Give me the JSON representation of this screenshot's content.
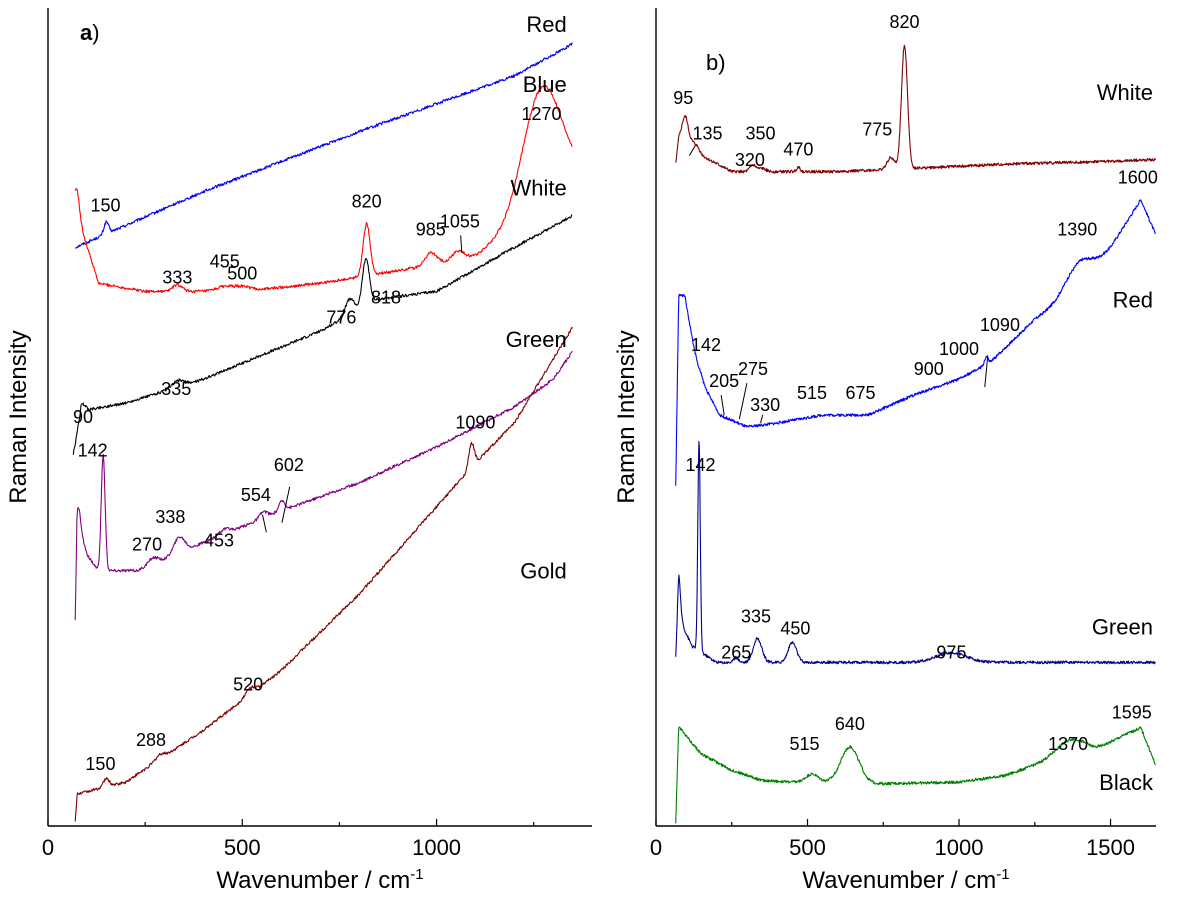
{
  "chart_data": [
    {
      "type": "line",
      "panel_label": {
        "bold": "a",
        "rest": ")"
      },
      "xlabel": "Wavenumber  /  cm",
      "xlabel_sup": "-1",
      "ylabel": "Raman  Intensity",
      "xlim": [
        0,
        1400
      ],
      "x_ticks": [
        "0",
        "500",
        "1000"
      ],
      "x_tick_values": [
        0,
        500,
        1000
      ],
      "y_ticks_shown": false,
      "series": [
        {
          "name": "Red",
          "color": "#0000ff",
          "x_range": [
            70,
            1350
          ],
          "baseline": [
            [
              70,
              0.72
            ],
            [
              400,
              0.79
            ],
            [
              800,
              0.865
            ],
            [
              1200,
              0.935
            ],
            [
              1350,
              0.975
            ]
          ],
          "peaks": [
            [
              150,
              0.015,
              6
            ]
          ]
        },
        {
          "name": "Blue",
          "color": "#ff0000",
          "x_range": [
            70,
            1350
          ],
          "baseline": [
            [
              70,
              0.77
            ],
            [
              130,
              0.675
            ],
            [
              250,
              0.665
            ],
            [
              500,
              0.665
            ],
            [
              700,
              0.675
            ],
            [
              950,
              0.695
            ],
            [
              1100,
              0.71
            ],
            [
              1200,
              0.74
            ],
            [
              1350,
              0.805
            ]
          ],
          "peaks": [
            [
              75,
              0.03,
              6
            ],
            [
              333,
              0.008,
              12
            ],
            [
              455,
              0.006,
              20
            ],
            [
              500,
              0.006,
              20
            ],
            [
              820,
              0.065,
              9
            ],
            [
              985,
              0.015,
              14
            ],
            [
              1055,
              0.01,
              14
            ],
            [
              1270,
              0.15,
              50
            ]
          ]
        },
        {
          "name": "White",
          "color": "#000000",
          "x_range": [
            65,
            1350
          ],
          "baseline": [
            [
              65,
              0.46
            ],
            [
              85,
              0.515
            ],
            [
              200,
              0.525
            ],
            [
              400,
              0.555
            ],
            [
              700,
              0.615
            ],
            [
              850,
              0.655
            ],
            [
              1000,
              0.665
            ],
            [
              1200,
              0.72
            ],
            [
              1350,
              0.76
            ]
          ],
          "peaks": [
            [
              90,
              0.008,
              7
            ],
            [
              335,
              0.008,
              15
            ],
            [
              776,
              0.02,
              12
            ],
            [
              818,
              0.06,
              9
            ]
          ]
        },
        {
          "name": "Green",
          "color": "#800080",
          "x_range": [
            70,
            1350
          ],
          "baseline": [
            [
              70,
              0.25
            ],
            [
              75,
              0.38
            ],
            [
              100,
              0.335
            ],
            [
              130,
              0.315
            ],
            [
              230,
              0.315
            ],
            [
              400,
              0.35
            ],
            [
              600,
              0.39
            ],
            [
              800,
              0.425
            ],
            [
              1000,
              0.47
            ],
            [
              1200,
              0.52
            ],
            [
              1300,
              0.555
            ],
            [
              1350,
              0.59
            ]
          ],
          "peaks": [
            [
              80,
              0.02,
              5
            ],
            [
              142,
              0.145,
              5
            ],
            [
              270,
              0.008,
              12
            ],
            [
              338,
              0.02,
              14
            ],
            [
              453,
              0.006,
              15
            ],
            [
              554,
              0.008,
              10
            ],
            [
              602,
              0.012,
              8
            ]
          ]
        },
        {
          "name": "Gold",
          "color": "#800000",
          "x_range": [
            70,
            1350
          ],
          "baseline": [
            [
              70,
              0.0
            ],
            [
              75,
              0.035
            ],
            [
              200,
              0.05
            ],
            [
              400,
              0.115
            ],
            [
              600,
              0.19
            ],
            [
              800,
              0.285
            ],
            [
              1000,
              0.395
            ],
            [
              1100,
              0.45
            ],
            [
              1200,
              0.5
            ],
            [
              1350,
              0.62
            ]
          ],
          "peaks": [
            [
              150,
              0.01,
              8
            ],
            [
              288,
              0.006,
              12
            ],
            [
              520,
              0.008,
              12
            ],
            [
              1090,
              0.03,
              7
            ]
          ]
        }
      ],
      "series_labels": [
        {
          "text": "Red",
          "x": 1335,
          "y": 0.99
        },
        {
          "text": "Blue",
          "x": 1335,
          "y": 0.915
        },
        {
          "text": "White",
          "x": 1335,
          "y": 0.785
        },
        {
          "text": "Green",
          "x": 1335,
          "y": 0.595
        },
        {
          "text": "Gold",
          "x": 1335,
          "y": 0.305
        }
      ],
      "peak_labels": [
        {
          "text": "1270",
          "x": 1270,
          "y": 0.88,
          "small": true
        },
        {
          "text": "150",
          "x": 148,
          "y": 0.765
        },
        {
          "text": "820",
          "x": 820,
          "y": 0.77
        },
        {
          "text": "985",
          "x": 985,
          "y": 0.735
        },
        {
          "text": "1055",
          "x": 1060,
          "y": 0.745,
          "small": true,
          "leader": [
            1062,
            0.735,
            1065,
            0.713
          ]
        },
        {
          "text": "455",
          "x": 455,
          "y": 0.695
        },
        {
          "text": "333",
          "x": 333,
          "y": 0.675
        },
        {
          "text": "500",
          "x": 500,
          "y": 0.68
        },
        {
          "text": "776",
          "x": 755,
          "y": 0.625
        },
        {
          "text": "818",
          "x": 870,
          "y": 0.65
        },
        {
          "text": "335",
          "x": 330,
          "y": 0.535
        },
        {
          "text": "90",
          "x": 90,
          "y": 0.5
        },
        {
          "text": "142",
          "x": 115,
          "y": 0.458
        },
        {
          "text": "338",
          "x": 315,
          "y": 0.375
        },
        {
          "text": "453",
          "x": 440,
          "y": 0.345
        },
        {
          "text": "554",
          "x": 535,
          "y": 0.402,
          "leader": [
            552,
            0.385,
            562,
            0.363
          ]
        },
        {
          "text": "602",
          "x": 620,
          "y": 0.44,
          "leader": [
            622,
            0.42,
            602,
            0.375
          ]
        },
        {
          "text": "270",
          "x": 255,
          "y": 0.34
        },
        {
          "text": "1090",
          "x": 1100,
          "y": 0.493
        },
        {
          "text": "520",
          "x": 515,
          "y": 0.165
        },
        {
          "text": "288",
          "x": 265,
          "y": 0.095
        },
        {
          "text": "150",
          "x": 135,
          "y": 0.065
        }
      ]
    },
    {
      "type": "line",
      "panel_label": {
        "bold": "",
        "rest": "b)"
      },
      "xlabel": "Wavenumber  /  cm",
      "xlabel_sup": "-1",
      "ylabel": "Raman Intensity",
      "xlim": [
        0,
        1650
      ],
      "x_ticks": [
        "0",
        "500",
        "1000",
        "1500"
      ],
      "x_tick_values": [
        0,
        500,
        1000,
        1500
      ],
      "y_ticks_shown": false,
      "series": [
        {
          "name": "White",
          "color": "#800000",
          "x_range": [
            65,
            1650
          ],
          "baseline": [
            [
              65,
              0.825
            ],
            [
              75,
              0.855
            ],
            [
              100,
              0.86
            ],
            [
              150,
              0.835
            ],
            [
              250,
              0.815
            ],
            [
              400,
              0.815
            ],
            [
              600,
              0.815
            ],
            [
              900,
              0.82
            ],
            [
              1200,
              0.825
            ],
            [
              1500,
              0.828
            ],
            [
              1650,
              0.83
            ]
          ],
          "peaks": [
            [
              95,
              0.025,
              10
            ],
            [
              135,
              0.005,
              12
            ],
            [
              320,
              0.008,
              10
            ],
            [
              350,
              0.004,
              12
            ],
            [
              470,
              0.006,
              6
            ],
            [
              775,
              0.015,
              12
            ],
            [
              820,
              0.155,
              10
            ]
          ]
        },
        {
          "name": "Red",
          "color": "#0000ff",
          "x_range": [
            65,
            1650
          ],
          "baseline": [
            [
              65,
              0.42
            ],
            [
              75,
              0.66
            ],
            [
              95,
              0.66
            ],
            [
              140,
              0.56
            ],
            [
              210,
              0.51
            ],
            [
              300,
              0.495
            ],
            [
              400,
              0.5
            ],
            [
              550,
              0.51
            ],
            [
              700,
              0.51
            ],
            [
              850,
              0.535
            ],
            [
              1000,
              0.555
            ],
            [
              1100,
              0.575
            ],
            [
              1250,
              0.63
            ],
            [
              1380,
              0.665
            ],
            [
              1500,
              0.72
            ],
            [
              1600,
              0.78
            ],
            [
              1650,
              0.735
            ]
          ],
          "peaks": [
            [
              142,
              0.01,
              10
            ],
            [
              1090,
              0.01,
              6
            ],
            [
              1390,
              0.03,
              40
            ]
          ]
        },
        {
          "name": "Green",
          "color": "#00008b",
          "x_range": [
            65,
            1650
          ],
          "baseline": [
            [
              65,
              0.2
            ],
            [
              75,
              0.27
            ],
            [
              95,
              0.24
            ],
            [
              120,
              0.22
            ],
            [
              200,
              0.2
            ],
            [
              300,
              0.2
            ],
            [
              500,
              0.2
            ],
            [
              800,
              0.2
            ],
            [
              1200,
              0.2
            ],
            [
              1650,
              0.2
            ]
          ],
          "peaks": [
            [
              75,
              0.04,
              5
            ],
            [
              142,
              0.265,
              4
            ],
            [
              265,
              0.006,
              8
            ],
            [
              335,
              0.03,
              14
            ],
            [
              450,
              0.025,
              14
            ],
            [
              975,
              0.012,
              50
            ]
          ]
        },
        {
          "name": "Black",
          "color": "#008000",
          "x_range": [
            65,
            1650
          ],
          "baseline": [
            [
              65,
              0.0
            ],
            [
              75,
              0.12
            ],
            [
              95,
              0.11
            ],
            [
              150,
              0.085
            ],
            [
              250,
              0.065
            ],
            [
              350,
              0.052
            ],
            [
              450,
              0.05
            ],
            [
              550,
              0.05
            ],
            [
              750,
              0.048
            ],
            [
              1000,
              0.05
            ],
            [
              1150,
              0.058
            ],
            [
              1300,
              0.078
            ],
            [
              1450,
              0.09
            ],
            [
              1550,
              0.11
            ],
            [
              1600,
              0.118
            ],
            [
              1650,
              0.07
            ]
          ],
          "peaks": [
            [
              515,
              0.01,
              20
            ],
            [
              640,
              0.045,
              30
            ],
            [
              1370,
              0.02,
              45
            ]
          ]
        }
      ],
      "series_labels": [
        {
          "text": "White",
          "x": 1640,
          "y": 0.905
        },
        {
          "text": "Red",
          "x": 1640,
          "y": 0.645
        },
        {
          "text": "Green",
          "x": 1640,
          "y": 0.235
        },
        {
          "text": "Black",
          "x": 1640,
          "y": 0.04
        }
      ],
      "peak_labels": [
        {
          "text": "820",
          "x": 820,
          "y": 0.995
        },
        {
          "text": "95",
          "x": 90,
          "y": 0.9
        },
        {
          "text": "135",
          "x": 170,
          "y": 0.855
        },
        {
          "text": "350",
          "x": 345,
          "y": 0.855
        },
        {
          "text": "320",
          "x": 310,
          "y": 0.822
        },
        {
          "text": "470",
          "x": 470,
          "y": 0.835
        },
        {
          "text": "775",
          "x": 730,
          "y": 0.86
        },
        {
          "text": "1600",
          "x": 1590,
          "y": 0.8
        },
        {
          "text": "1390",
          "x": 1390,
          "y": 0.735
        },
        {
          "text": "142",
          "x": 165,
          "y": 0.59
        },
        {
          "text": "205",
          "x": 225,
          "y": 0.545
        },
        {
          "text": "275",
          "x": 320,
          "y": 0.56
        },
        {
          "text": "330",
          "x": 360,
          "y": 0.515
        },
        {
          "text": "515",
          "x": 515,
          "y": 0.53
        },
        {
          "text": "675",
          "x": 675,
          "y": 0.53
        },
        {
          "text": "900",
          "x": 900,
          "y": 0.56
        },
        {
          "text": "1000",
          "x": 1000,
          "y": 0.585
        },
        {
          "text": "1090",
          "x": 1135,
          "y": 0.615
        },
        {
          "text": "142",
          "x": 147,
          "y": 0.44
        },
        {
          "text": "265",
          "x": 265,
          "y": 0.205
        },
        {
          "text": "335",
          "x": 330,
          "y": 0.25
        },
        {
          "text": "450",
          "x": 460,
          "y": 0.235
        },
        {
          "text": "975",
          "x": 975,
          "y": 0.205
        },
        {
          "text": "1595",
          "x": 1570,
          "y": 0.13
        },
        {
          "text": "640",
          "x": 640,
          "y": 0.115
        },
        {
          "text": "515",
          "x": 490,
          "y": 0.09
        },
        {
          "text": "1370",
          "x": 1360,
          "y": 0.09
        }
      ],
      "leaders": [
        [
          110,
          0.835,
          130,
          0.848
        ],
        [
          1085,
          0.545,
          1095,
          0.585
        ],
        [
          225,
          0.51,
          215,
          0.535
        ],
        [
          275,
          0.505,
          300,
          0.55
        ],
        [
          345,
          0.5,
          352,
          0.51
        ]
      ]
    }
  ]
}
